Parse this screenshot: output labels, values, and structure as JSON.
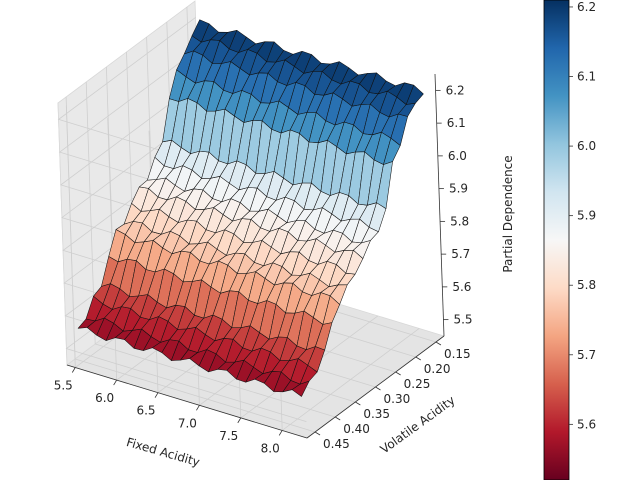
{
  "chart_data": {
    "type": "surface3d",
    "title": "",
    "xlabel": "Fixed Acidity",
    "ylabel": "Volatile Acidity",
    "zlabel": "Partial Dependence",
    "x_ticks": [
      "8.0",
      "7.5",
      "7.0",
      "6.5",
      "6.0",
      "5.5"
    ],
    "y_ticks": [
      "0.15",
      "0.20",
      "0.25",
      "0.30",
      "0.35",
      "0.40",
      "0.45"
    ],
    "z_ticks": [
      "5.5",
      "5.6",
      "5.7",
      "5.8",
      "5.9",
      "6.0",
      "6.1",
      "6.2"
    ],
    "xlim": [
      5.4,
      8.3
    ],
    "ylim": [
      0.13,
      0.47
    ],
    "zlim": [
      5.45,
      6.25
    ],
    "colormap": "RdBu",
    "colorbar": {
      "ticks": [
        "5.6",
        "5.7",
        "5.8",
        "5.9",
        "6.0",
        "6.1",
        "6.2"
      ],
      "range": [
        5.52,
        6.21
      ]
    },
    "volatile_acidity": [
      0.46,
      0.44,
      0.42,
      0.4,
      0.38,
      0.36,
      0.34,
      0.32,
      0.3,
      0.28,
      0.26,
      0.24,
      0.22,
      0.2,
      0.18,
      0.16,
      0.14
    ],
    "partial_dependence_profile": [
      5.56,
      5.58,
      5.61,
      5.64,
      5.71,
      5.76,
      5.78,
      5.81,
      5.84,
      5.86,
      5.89,
      5.93,
      6.05,
      6.1,
      6.15,
      6.18,
      6.2
    ],
    "fixed_acidity_range": [
      5.5,
      8.2
    ],
    "grid": true
  }
}
